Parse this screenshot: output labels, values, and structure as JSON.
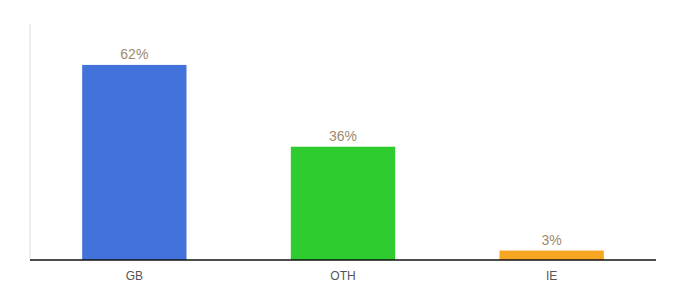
{
  "chart_data": {
    "type": "bar",
    "categories": [
      "GB",
      "OTH",
      "IE"
    ],
    "values": [
      62,
      36,
      3
    ],
    "value_labels": [
      "62%",
      "36%",
      "3%"
    ],
    "colors": [
      "#4472db",
      "#2ecc2e",
      "#f5a623"
    ],
    "ylim": [
      0,
      75
    ],
    "data_labels": true,
    "tick_labels": "x"
  }
}
